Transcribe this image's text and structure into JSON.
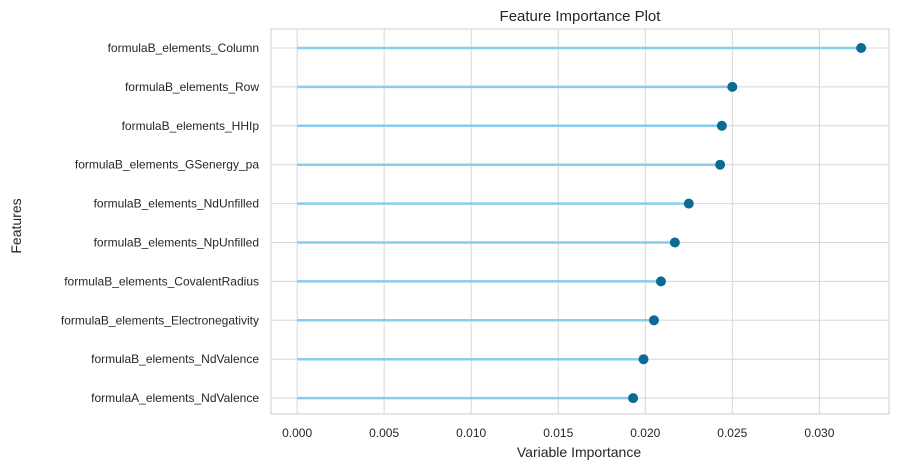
{
  "chart_data": {
    "type": "lollipop",
    "title": "Feature Importance Plot",
    "xlabel": "Variable Importance",
    "ylabel": "Features",
    "xlim": [
      -0.0015,
      0.034
    ],
    "xticks": [
      0.0,
      0.005,
      0.01,
      0.015,
      0.02,
      0.025,
      0.03
    ],
    "xtick_labels": [
      "0.000",
      "0.005",
      "0.010",
      "0.015",
      "0.020",
      "0.025",
      "0.030"
    ],
    "grid": true,
    "colors": {
      "stem": "#87ceeb",
      "marker": "#0b6b94",
      "grid": "#d8d8d8"
    },
    "features": [
      "formulaB_elements_Column",
      "formulaB_elements_Row",
      "formulaB_elements_HHIp",
      "formulaB_elements_GSenergy_pa",
      "formulaB_elements_NdUnfilled",
      "formulaB_elements_NpUnfilled",
      "formulaB_elements_CovalentRadius",
      "formulaB_elements_Electronegativity",
      "formulaB_elements_NdValence",
      "formulaA_elements_NdValence"
    ],
    "values": [
      0.0324,
      0.025,
      0.0244,
      0.0243,
      0.0225,
      0.0217,
      0.0209,
      0.0205,
      0.0199,
      0.0193
    ]
  }
}
